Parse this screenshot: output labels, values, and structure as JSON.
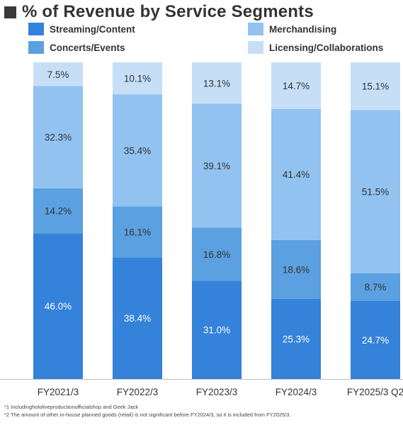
{
  "chart_data": {
    "type": "bar",
    "stacked": true,
    "percent": true,
    "title": "% of Revenue by Service Segments",
    "categories": [
      "FY2021/3",
      "FY2022/3",
      "FY2023/3",
      "FY2024/3",
      "FY2025/3 Q2"
    ],
    "series": [
      {
        "name": "Streaming/Content",
        "color": "#3482d9",
        "values": [
          46.0,
          38.4,
          31.0,
          25.3,
          24.7
        ],
        "labels": [
          "46.0%",
          "38.4%",
          "31.0%",
          "25.3%",
          "24.7%"
        ],
        "label_color": "#ffffff"
      },
      {
        "name": "Concerts/Events",
        "color": "#5ba0e0",
        "values": [
          14.2,
          16.1,
          16.8,
          18.6,
          8.7
        ],
        "labels": [
          "14.2%",
          "16.1%",
          "16.8%",
          "18.6%",
          "8.7%"
        ],
        "label_color": "#333333"
      },
      {
        "name": "Merchandising",
        "color": "#91c2f0",
        "values": [
          32.3,
          35.4,
          39.1,
          41.4,
          51.5
        ],
        "labels": [
          "32.3%",
          "35.4%",
          "39.1%",
          "41.4%",
          "51.5%"
        ],
        "label_color": "#333333"
      },
      {
        "name": "Licensing/Collaborations",
        "color": "#c6dff7",
        "values": [
          7.5,
          10.1,
          13.1,
          14.7,
          15.1
        ],
        "labels": [
          "7.5%",
          "10.1%",
          "13.1%",
          "14.7%",
          "15.1%"
        ],
        "label_color": "#333333"
      }
    ],
    "ylim": [
      0,
      100
    ],
    "grid": false,
    "legend_position": "top"
  },
  "legend": [
    {
      "label": "Streaming/Content",
      "color": "#3482d9"
    },
    {
      "label": "Merchandising",
      "color": "#91c2f0"
    },
    {
      "label": "Concerts/Events",
      "color": "#5ba0e0"
    },
    {
      "label": "Licensing/Collaborations",
      "color": "#c6dff7"
    }
  ],
  "footnotes": [
    "*1 Includinghololiveproductionofficialshop and Geek Jack",
    "*2 The amount of other in-house planned goods (retail) is not significant before FY2024/3, so it is included from FY2025/3."
  ]
}
